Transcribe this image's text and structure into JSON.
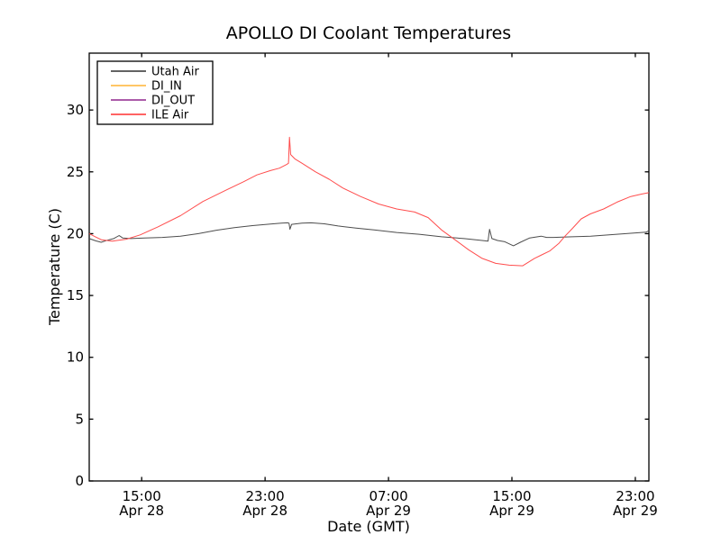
{
  "chart_data": {
    "type": "line",
    "title": "APOLLO DI Coolant Temperatures",
    "xlabel": "Date (GMT)",
    "ylabel": "Temperature (C)",
    "grid": false,
    "legend_position": "upper-left",
    "frame_color": "#000000",
    "background_color": "#ffffff",
    "x_unit": "hours since Apr 28 00:00 GMT",
    "xlim": [
      11.6,
      47.88
    ],
    "ylim": [
      0,
      34.6
    ],
    "x_ticks": [
      {
        "value": 15,
        "time": "15:00",
        "date": "Apr 28"
      },
      {
        "value": 23,
        "time": "23:00",
        "date": "Apr 28"
      },
      {
        "value": 31,
        "time": "07:00",
        "date": "Apr 29"
      },
      {
        "value": 39,
        "time": "15:00",
        "date": "Apr 29"
      },
      {
        "value": 47,
        "time": "23:00",
        "date": "Apr 29"
      }
    ],
    "y_ticks": [
      0,
      5,
      10,
      15,
      20,
      25,
      30
    ],
    "series": [
      {
        "name": "Utah Air",
        "color": "#4d4d4d",
        "points": [
          [
            11.6,
            19.6
          ],
          [
            12.02,
            19.42
          ],
          [
            12.37,
            19.3
          ],
          [
            12.72,
            19.45
          ],
          [
            13.19,
            19.6
          ],
          [
            13.54,
            19.85
          ],
          [
            13.77,
            19.65
          ],
          [
            14.3,
            19.6
          ],
          [
            15.18,
            19.65
          ],
          [
            16.34,
            19.7
          ],
          [
            17.51,
            19.8
          ],
          [
            18.68,
            20.0
          ],
          [
            19.85,
            20.28
          ],
          [
            21.01,
            20.48
          ],
          [
            22.18,
            20.65
          ],
          [
            23.35,
            20.78
          ],
          [
            24.05,
            20.85
          ],
          [
            24.46,
            20.88
          ],
          [
            24.55,
            20.85
          ],
          [
            24.61,
            20.35
          ],
          [
            24.72,
            20.75
          ],
          [
            25.39,
            20.85
          ],
          [
            25.98,
            20.88
          ],
          [
            26.85,
            20.8
          ],
          [
            27.73,
            20.62
          ],
          [
            28.9,
            20.45
          ],
          [
            30.07,
            20.3
          ],
          [
            31.53,
            20.1
          ],
          [
            32.99,
            19.95
          ],
          [
            34.44,
            19.75
          ],
          [
            35.9,
            19.6
          ],
          [
            37.07,
            19.45
          ],
          [
            37.45,
            19.4
          ],
          [
            37.55,
            20.35
          ],
          [
            37.7,
            19.6
          ],
          [
            38.07,
            19.45
          ],
          [
            38.54,
            19.35
          ],
          [
            39.1,
            19.02
          ],
          [
            39.55,
            19.3
          ],
          [
            40.15,
            19.65
          ],
          [
            40.9,
            19.8
          ],
          [
            41.25,
            19.7
          ],
          [
            41.7,
            19.7
          ],
          [
            42.9,
            19.75
          ],
          [
            44.1,
            19.8
          ],
          [
            45.3,
            19.9
          ],
          [
            46.4,
            20.0
          ],
          [
            47.3,
            20.08
          ],
          [
            47.7,
            20.12
          ],
          [
            47.88,
            20.25
          ]
        ]
      },
      {
        "name": "DI_IN",
        "color": "#ffbe50",
        "points": []
      },
      {
        "name": "DI_OUT",
        "color": "#a0459e",
        "points": []
      },
      {
        "name": "ILE Air",
        "color": "#ff4d4d",
        "points": [
          [
            11.6,
            20.0
          ],
          [
            12.0,
            19.75
          ],
          [
            12.4,
            19.5
          ],
          [
            13.1,
            19.4
          ],
          [
            14.0,
            19.55
          ],
          [
            14.9,
            19.9
          ],
          [
            16.05,
            20.55
          ],
          [
            17.51,
            21.45
          ],
          [
            18.97,
            22.6
          ],
          [
            20.43,
            23.5
          ],
          [
            21.6,
            24.2
          ],
          [
            22.47,
            24.75
          ],
          [
            23.35,
            25.1
          ],
          [
            23.93,
            25.3
          ],
          [
            24.4,
            25.6
          ],
          [
            24.52,
            25.7
          ],
          [
            24.58,
            27.8
          ],
          [
            24.66,
            26.4
          ],
          [
            24.93,
            26.05
          ],
          [
            25.39,
            25.7
          ],
          [
            26.27,
            25.0
          ],
          [
            27.15,
            24.4
          ],
          [
            28.02,
            23.7
          ],
          [
            29.19,
            23.0
          ],
          [
            30.36,
            22.4
          ],
          [
            31.53,
            22.0
          ],
          [
            32.69,
            21.75
          ],
          [
            33.57,
            21.3
          ],
          [
            34.44,
            20.3
          ],
          [
            35.32,
            19.5
          ],
          [
            36.19,
            18.7
          ],
          [
            37.07,
            18.0
          ],
          [
            37.95,
            17.6
          ],
          [
            38.82,
            17.45
          ],
          [
            39.7,
            17.4
          ],
          [
            40.46,
            18.0
          ],
          [
            40.87,
            18.25
          ],
          [
            41.45,
            18.6
          ],
          [
            42.03,
            19.2
          ],
          [
            42.44,
            19.8
          ],
          [
            42.91,
            20.4
          ],
          [
            43.49,
            21.2
          ],
          [
            44.08,
            21.6
          ],
          [
            44.95,
            22.0
          ],
          [
            45.82,
            22.55
          ],
          [
            46.7,
            23.0
          ],
          [
            47.4,
            23.2
          ],
          [
            47.88,
            23.32
          ]
        ]
      }
    ]
  }
}
